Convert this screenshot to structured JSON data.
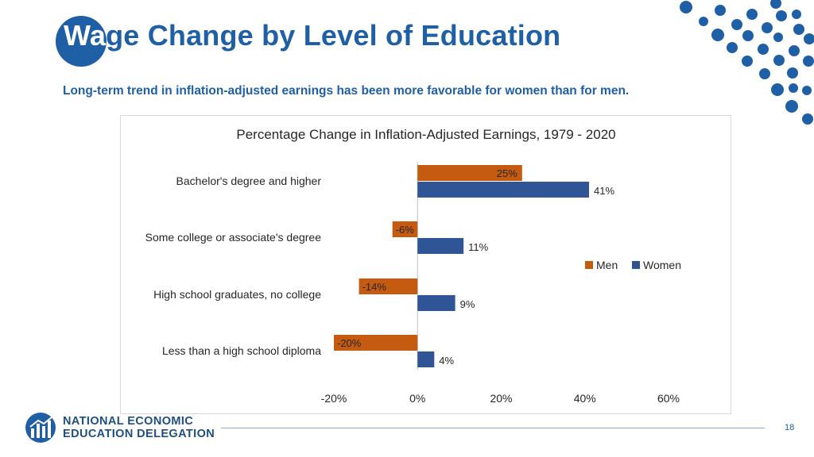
{
  "slide": {
    "title": "Wage Change by Level of Education",
    "subtitle": "Long-term trend in inflation-adjusted earnings has been more favorable for women than for men.",
    "page_number": "18"
  },
  "footer": {
    "org_line1": "NATIONAL ECONOMIC",
    "org_line2": "EDUCATION DELEGATION"
  },
  "colors": {
    "brand_blue": "#1f5fa6",
    "men": "#c55a11",
    "women": "#2f5597"
  },
  "chart_data": {
    "type": "bar",
    "orientation": "horizontal",
    "title": "Percentage Change in Inflation-Adjusted Earnings, 1979 - 2020",
    "categories": [
      "Bachelor's degree and higher",
      "Some college or associate's degree",
      "High school graduates, no college",
      "Less than a high school diploma"
    ],
    "series": [
      {
        "name": "Men",
        "values": [
          25,
          -6,
          -14,
          -20
        ],
        "labels": [
          "25%",
          "-6%",
          "-14%",
          "-20%"
        ],
        "color": "#c55a11"
      },
      {
        "name": "Women",
        "values": [
          41,
          11,
          9,
          4
        ],
        "labels": [
          "41%",
          "11%",
          "9%",
          "4%"
        ],
        "color": "#2f5597"
      }
    ],
    "xlim": [
      -20,
      60
    ],
    "xticks": [
      -20,
      0,
      20,
      40,
      60
    ],
    "xtick_labels": [
      "-20%",
      "0%",
      "20%",
      "40%",
      "60%"
    ],
    "grid": false,
    "legend_position": "right"
  }
}
